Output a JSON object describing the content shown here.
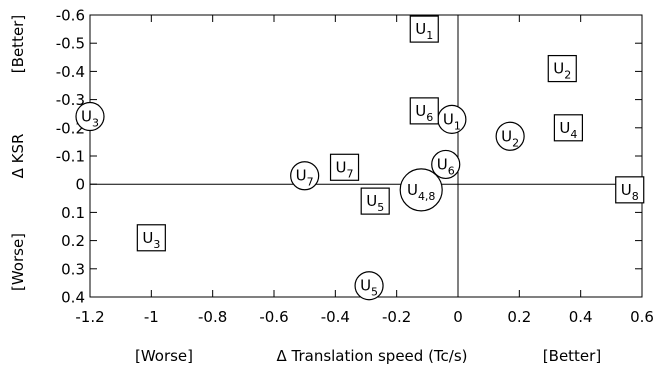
{
  "chart_data": {
    "type": "scatter",
    "xlabel": "Δ Translation speed (Tc/s)",
    "ylabel": "Δ KSR",
    "x_annotations": {
      "left": "[Worse]",
      "right": "[Better]"
    },
    "y_annotations": {
      "top": "[Better]",
      "bottom": "[Worse]"
    },
    "xlim": [
      -1.2,
      0.6
    ],
    "ylim": [
      -0.6,
      0.4
    ],
    "y_inverted": true,
    "x_ticks": [
      -1.2,
      -1,
      -0.8,
      -0.6,
      -0.4,
      -0.2,
      0,
      0.2,
      0.4,
      0.6
    ],
    "x_tick_labels": [
      "-1.2",
      "-1",
      "-0.8",
      "-0.6",
      "-0.4",
      "-0.2",
      "0",
      "0.2",
      "0.4",
      "0.6"
    ],
    "y_ticks": [
      -0.6,
      -0.5,
      -0.4,
      -0.3,
      -0.2,
      -0.1,
      0,
      0.1,
      0.2,
      0.3,
      0.4
    ],
    "y_tick_labels": [
      "-0.6",
      "-0.5",
      "-0.4",
      "-0.3",
      "-0.2",
      "-0.1",
      "0",
      "0.1",
      "0.2",
      "0.3",
      "0.4"
    ],
    "grid": false,
    "reference_lines": {
      "x": 0,
      "y": 0
    },
    "series": [
      {
        "marker": "circle",
        "points": [
          {
            "label": "U",
            "sub": "1",
            "x": -0.02,
            "y": -0.23
          },
          {
            "label": "U",
            "sub": "2",
            "x": 0.17,
            "y": -0.17
          },
          {
            "label": "U",
            "sub": "3",
            "x": -1.2,
            "y": -0.24
          },
          {
            "label": "U",
            "sub": "4,8",
            "x": -0.12,
            "y": 0.02
          },
          {
            "label": "U",
            "sub": "5",
            "x": -0.29,
            "y": 0.36
          },
          {
            "label": "U",
            "sub": "6",
            "x": -0.04,
            "y": -0.07
          },
          {
            "label": "U",
            "sub": "7",
            "x": -0.5,
            "y": -0.03
          }
        ]
      },
      {
        "marker": "square",
        "points": [
          {
            "label": "U",
            "sub": "1",
            "x": -0.11,
            "y": -0.55
          },
          {
            "label": "U",
            "sub": "2",
            "x": 0.34,
            "y": -0.41
          },
          {
            "label": "U",
            "sub": "3",
            "x": -1.0,
            "y": 0.19
          },
          {
            "label": "U",
            "sub": "4",
            "x": 0.36,
            "y": -0.2
          },
          {
            "label": "U",
            "sub": "5",
            "x": -0.27,
            "y": 0.06
          },
          {
            "label": "U",
            "sub": "6",
            "x": -0.11,
            "y": -0.26
          },
          {
            "label": "U",
            "sub": "7",
            "x": -0.37,
            "y": -0.06
          },
          {
            "label": "U",
            "sub": "8",
            "x": 0.56,
            "y": 0.02
          }
        ]
      }
    ]
  }
}
